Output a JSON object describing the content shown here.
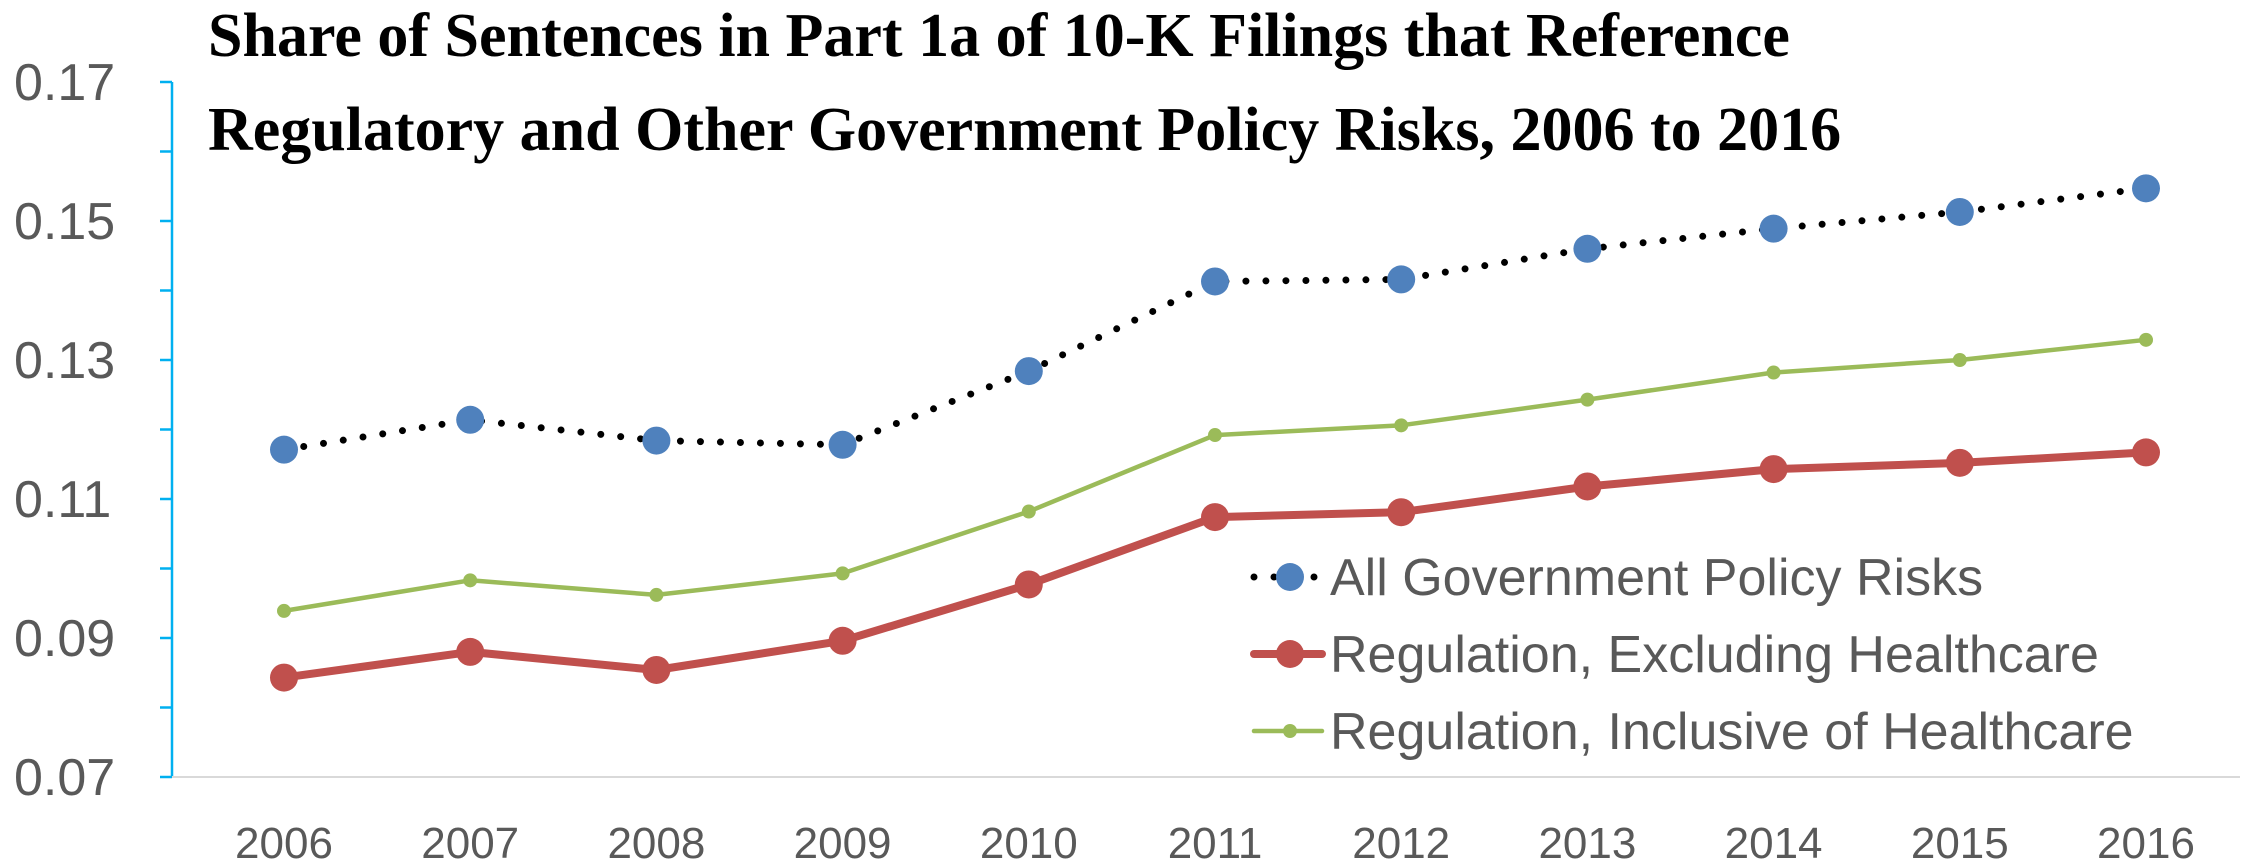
{
  "chart_data": {
    "type": "line",
    "title_lines": [
      "Share of Sentences in Part 1a of 10-K Filings that Reference",
      "Regulatory and Other Government Policy Risks, 2006 to 2016"
    ],
    "xlabel": "",
    "ylabel": "",
    "x": [
      "2006",
      "2007",
      "2008",
      "2009",
      "2010",
      "2011",
      "2012",
      "2013",
      "2014",
      "2015",
      "2016"
    ],
    "y_ticks": [
      "0.07",
      "0.09",
      "0.11",
      "0.13",
      "0.15",
      "0.17"
    ],
    "ylim": [
      0.07,
      0.17
    ],
    "grid": false,
    "legend_position": "bottom-right",
    "series": [
      {
        "name": "All Government Policy Risks",
        "values": [
          0.1171,
          0.1214,
          0.1184,
          0.1178,
          0.1284,
          0.1413,
          0.1416,
          0.146,
          0.1489,
          0.1513,
          0.1547
        ],
        "color": "#4f81bd",
        "line_color": "#000000",
        "style": "dotted-line-with-circle-markers"
      },
      {
        "name": "Regulation, Excluding Healthcare",
        "values": [
          0.0843,
          0.088,
          0.0854,
          0.0896,
          0.0977,
          0.1074,
          0.1081,
          0.1118,
          0.1143,
          0.1152,
          0.1167
        ],
        "color": "#c0504d",
        "style": "thick-line-with-circle-markers"
      },
      {
        "name": "Regulation, Inclusive of Healthcare",
        "values": [
          0.0939,
          0.0983,
          0.0962,
          0.0993,
          0.1082,
          0.1192,
          0.1206,
          0.1243,
          0.1282,
          0.13,
          0.1329
        ],
        "color": "#9bbb59",
        "style": "thin-line-with-small-markers"
      }
    ]
  },
  "axis_color": "#00b0f0"
}
